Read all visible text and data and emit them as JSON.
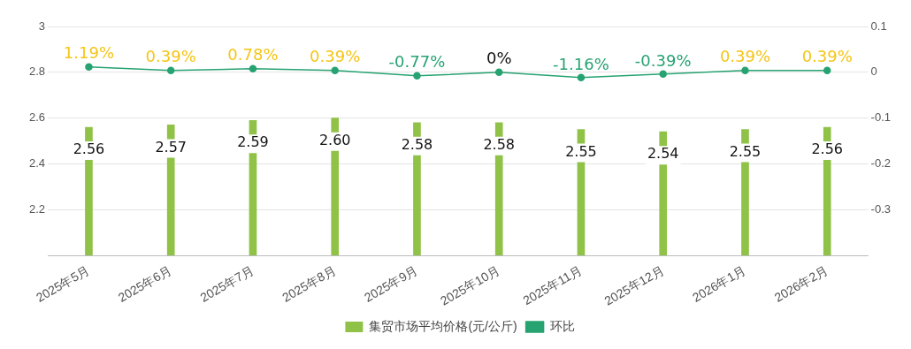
{
  "chart_data": {
    "type": "bar",
    "categories": [
      "2025年5月",
      "2025年6月",
      "2025年7月",
      "2025年8月",
      "2025年9月",
      "2025年10月",
      "2025年11月",
      "2025年12月",
      "2026年1月",
      "2026年2月"
    ],
    "series": [
      {
        "name": "集贸市场平均价格(元/公斤)",
        "color": "#8fc247",
        "values": [
          2.56,
          2.57,
          2.59,
          2.6,
          2.58,
          2.58,
          2.55,
          2.54,
          2.55,
          2.56
        ],
        "value_labels": [
          "2.56",
          "2.57",
          "2.59",
          "2.60",
          "2.58",
          "2.58",
          "2.55",
          "2.54",
          "2.55",
          "2.56"
        ]
      },
      {
        "name": "环比",
        "type": "line",
        "axis": "y2",
        "color": "#27a372",
        "values": [
          0.0119,
          0.0039,
          0.0078,
          0.0039,
          -0.0077,
          0,
          -0.0116,
          -0.0039,
          0.0039,
          0.0039
        ],
        "value_labels": [
          "1.19%",
          "0.39%",
          "0.78%",
          "0.39%",
          "-0.77%",
          "0%",
          "-1.16%",
          "-0.39%",
          "0.39%",
          "0.39%"
        ]
      }
    ],
    "ylim": [
      2,
      3
    ],
    "yticks": [
      2.2,
      2.4,
      2.6,
      2.8,
      3
    ],
    "y2lim": [
      -0.4,
      0.1
    ],
    "y2ticks": [
      -0.3,
      -0.2,
      -0.1,
      0,
      0.1
    ],
    "grid": "y",
    "legend": "bottom",
    "marker": "circle",
    "line_style": "solid"
  }
}
